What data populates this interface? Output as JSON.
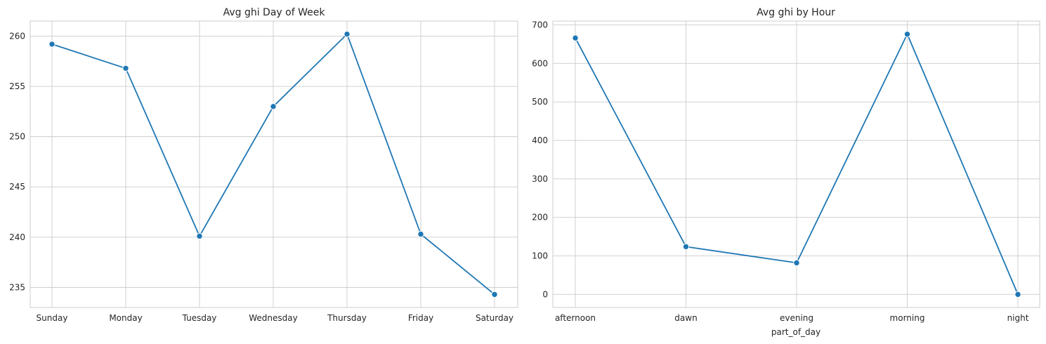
{
  "chart_data": [
    {
      "type": "line",
      "title": "Avg ghi Day of Week",
      "xlabel": "",
      "ylabel": "",
      "categories": [
        "Sunday",
        "Monday",
        "Tuesday",
        "Wednesday",
        "Thursday",
        "Friday",
        "Saturday"
      ],
      "values": [
        259.2,
        256.8,
        240.1,
        253.0,
        260.2,
        240.3,
        234.3
      ],
      "ylim": [
        233.0,
        261.5
      ],
      "yticks": [
        235,
        240,
        245,
        250,
        255,
        260
      ],
      "grid": true,
      "marker": "circle",
      "color": "#1f77b4"
    },
    {
      "type": "line",
      "title": "Avg ghi by Hour",
      "xlabel": "part_of_day",
      "ylabel": "",
      "categories": [
        "afternoon",
        "dawn",
        "evening",
        "morning",
        "night"
      ],
      "values": [
        666,
        124,
        82,
        676,
        0
      ],
      "ylim": [
        -34,
        710
      ],
      "yticks": [
        0,
        100,
        200,
        300,
        400,
        500,
        600,
        700
      ],
      "grid": true,
      "marker": "circle",
      "color": "#1f77b4"
    }
  ]
}
